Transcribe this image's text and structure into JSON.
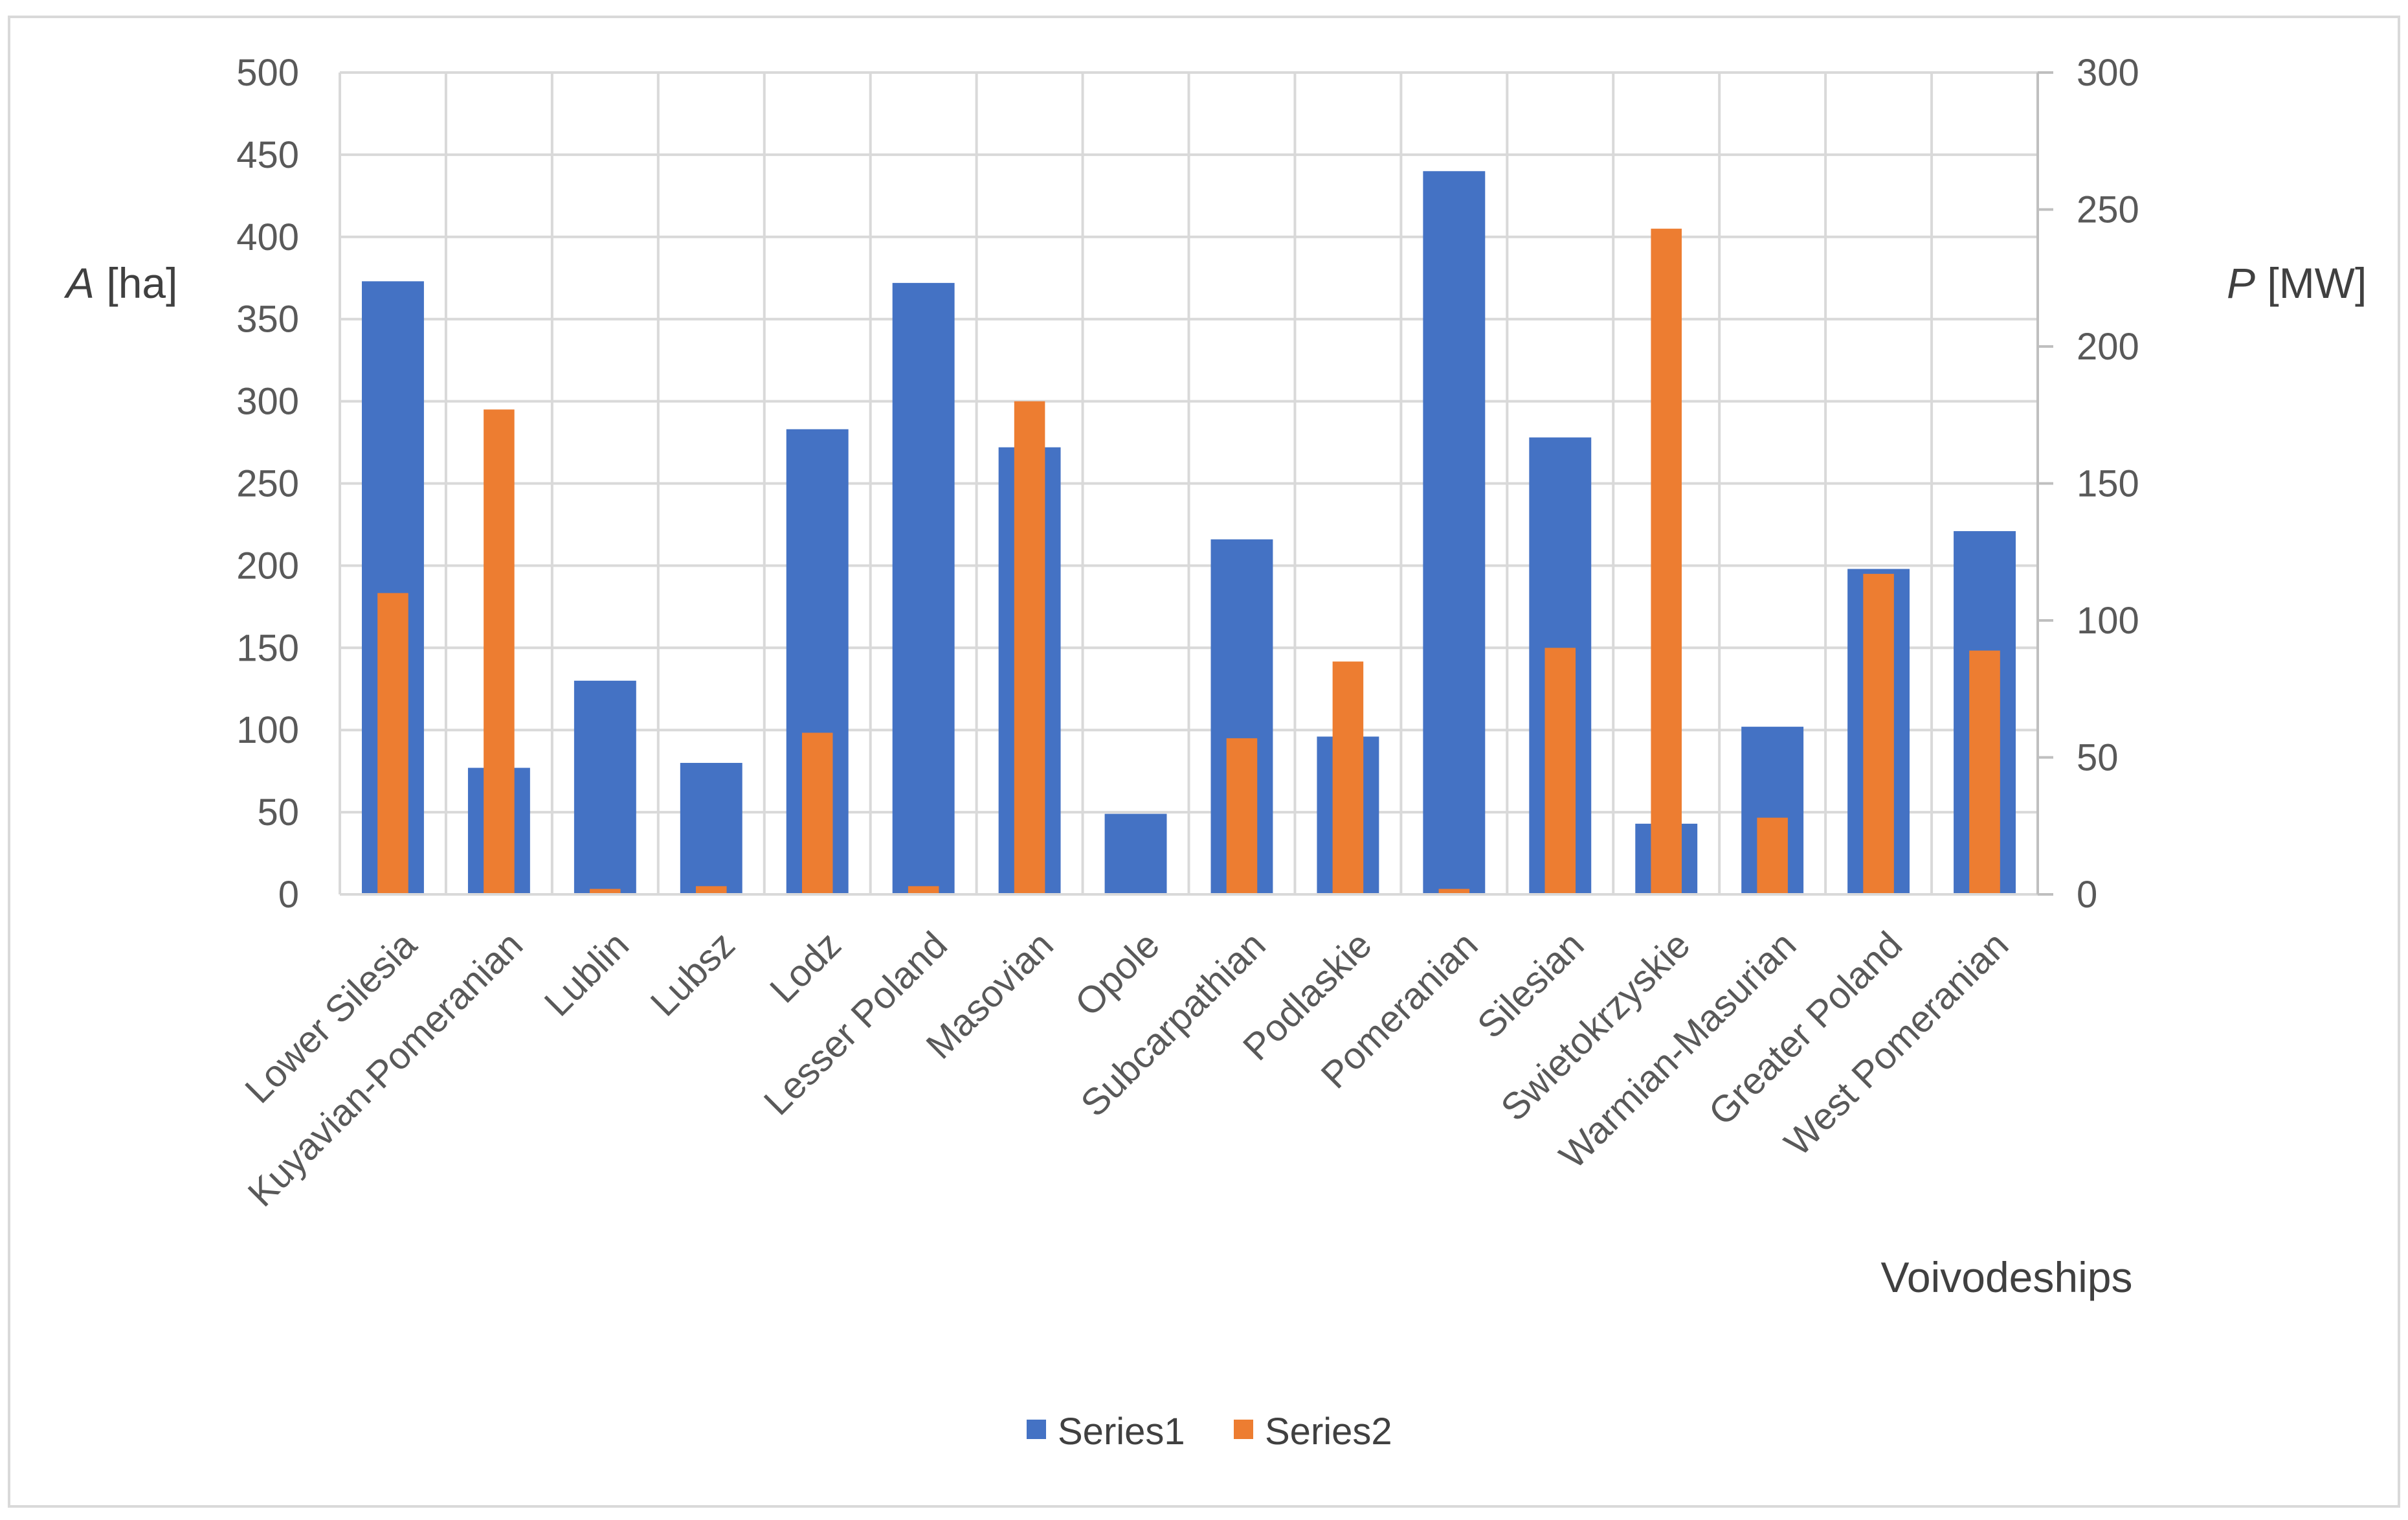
{
  "chart_data": {
    "type": "bar",
    "title": "",
    "xlabel": "Voivodeships",
    "ylabel": {
      "symbol": "A",
      "unit": " [ha]"
    },
    "y2label": {
      "symbol": "P",
      "unit": " [MW]"
    },
    "ylim": [
      0,
      500
    ],
    "y2lim": [
      0,
      300
    ],
    "yticks": [
      0,
      50,
      100,
      150,
      200,
      250,
      300,
      350,
      400,
      450,
      500
    ],
    "y2ticks": [
      0,
      50,
      100,
      150,
      200,
      250,
      300
    ],
    "grid": true,
    "legend_position": "bottom",
    "categories": [
      "Lower Silesia",
      "Kuyavian-Pomeranian",
      "Lublin",
      "Lubsz",
      "Lodz",
      "Lesser Poland",
      "Masovian",
      "Opole",
      "Subcarpathian",
      "Podlaskie",
      "Pomeranian",
      "Silesian",
      "Swietokrzyskie",
      "Warmian-Masurian",
      "Greater Poland",
      "West Pomeranian"
    ],
    "series": [
      {
        "name": "Series1",
        "axis": "left",
        "color": "#4472C4",
        "values": [
          373,
          77,
          130,
          80,
          283,
          372,
          272,
          49,
          216,
          96,
          440,
          278,
          43,
          102,
          198,
          221
        ]
      },
      {
        "name": "Series2",
        "axis": "right",
        "color": "#ED7D31",
        "values": [
          110,
          177,
          2,
          3,
          59,
          3,
          180,
          0,
          57,
          85,
          2,
          90,
          243,
          28,
          117,
          89
        ]
      }
    ]
  }
}
